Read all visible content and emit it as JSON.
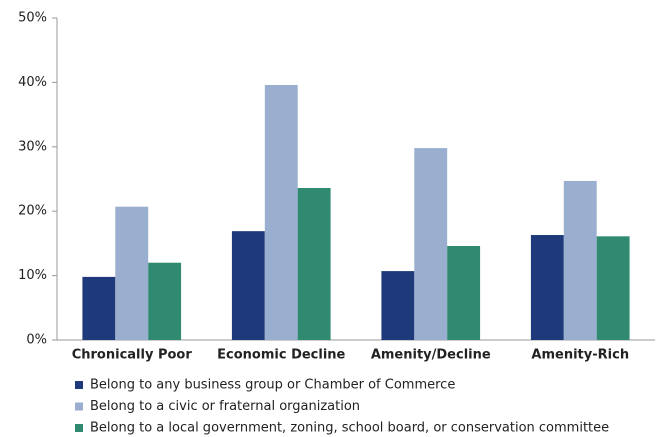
{
  "chart_data": {
    "type": "bar",
    "categories": [
      "Chronically Poor",
      "Economic Decline",
      "Amenity/Decline",
      "Amenity-Rich"
    ],
    "series": [
      {
        "name": "Belong to any business group or Chamber of Commerce",
        "color": "#1f3a7a",
        "values": [
          9.8,
          16.9,
          10.7,
          16.3
        ]
      },
      {
        "name": "Belong to a civic or fraternal organization",
        "color": "#9aaed0",
        "values": [
          20.7,
          39.6,
          29.8,
          24.7
        ]
      },
      {
        "name": "Belong to a local government, zoning, school board, or conservation committee",
        "color": "#2f8a70",
        "values": [
          12.0,
          23.6,
          14.6,
          16.1
        ]
      }
    ],
    "ylim": [
      0,
      50
    ],
    "yticks": [
      {
        "value": 0,
        "label": "0%"
      },
      {
        "value": 10,
        "label": "10%"
      },
      {
        "value": 20,
        "label": "20%"
      },
      {
        "value": 30,
        "label": "30%"
      },
      {
        "value": 40,
        "label": "40%"
      },
      {
        "value": 50,
        "label": "50%"
      }
    ],
    "legend": "bottom-left"
  }
}
